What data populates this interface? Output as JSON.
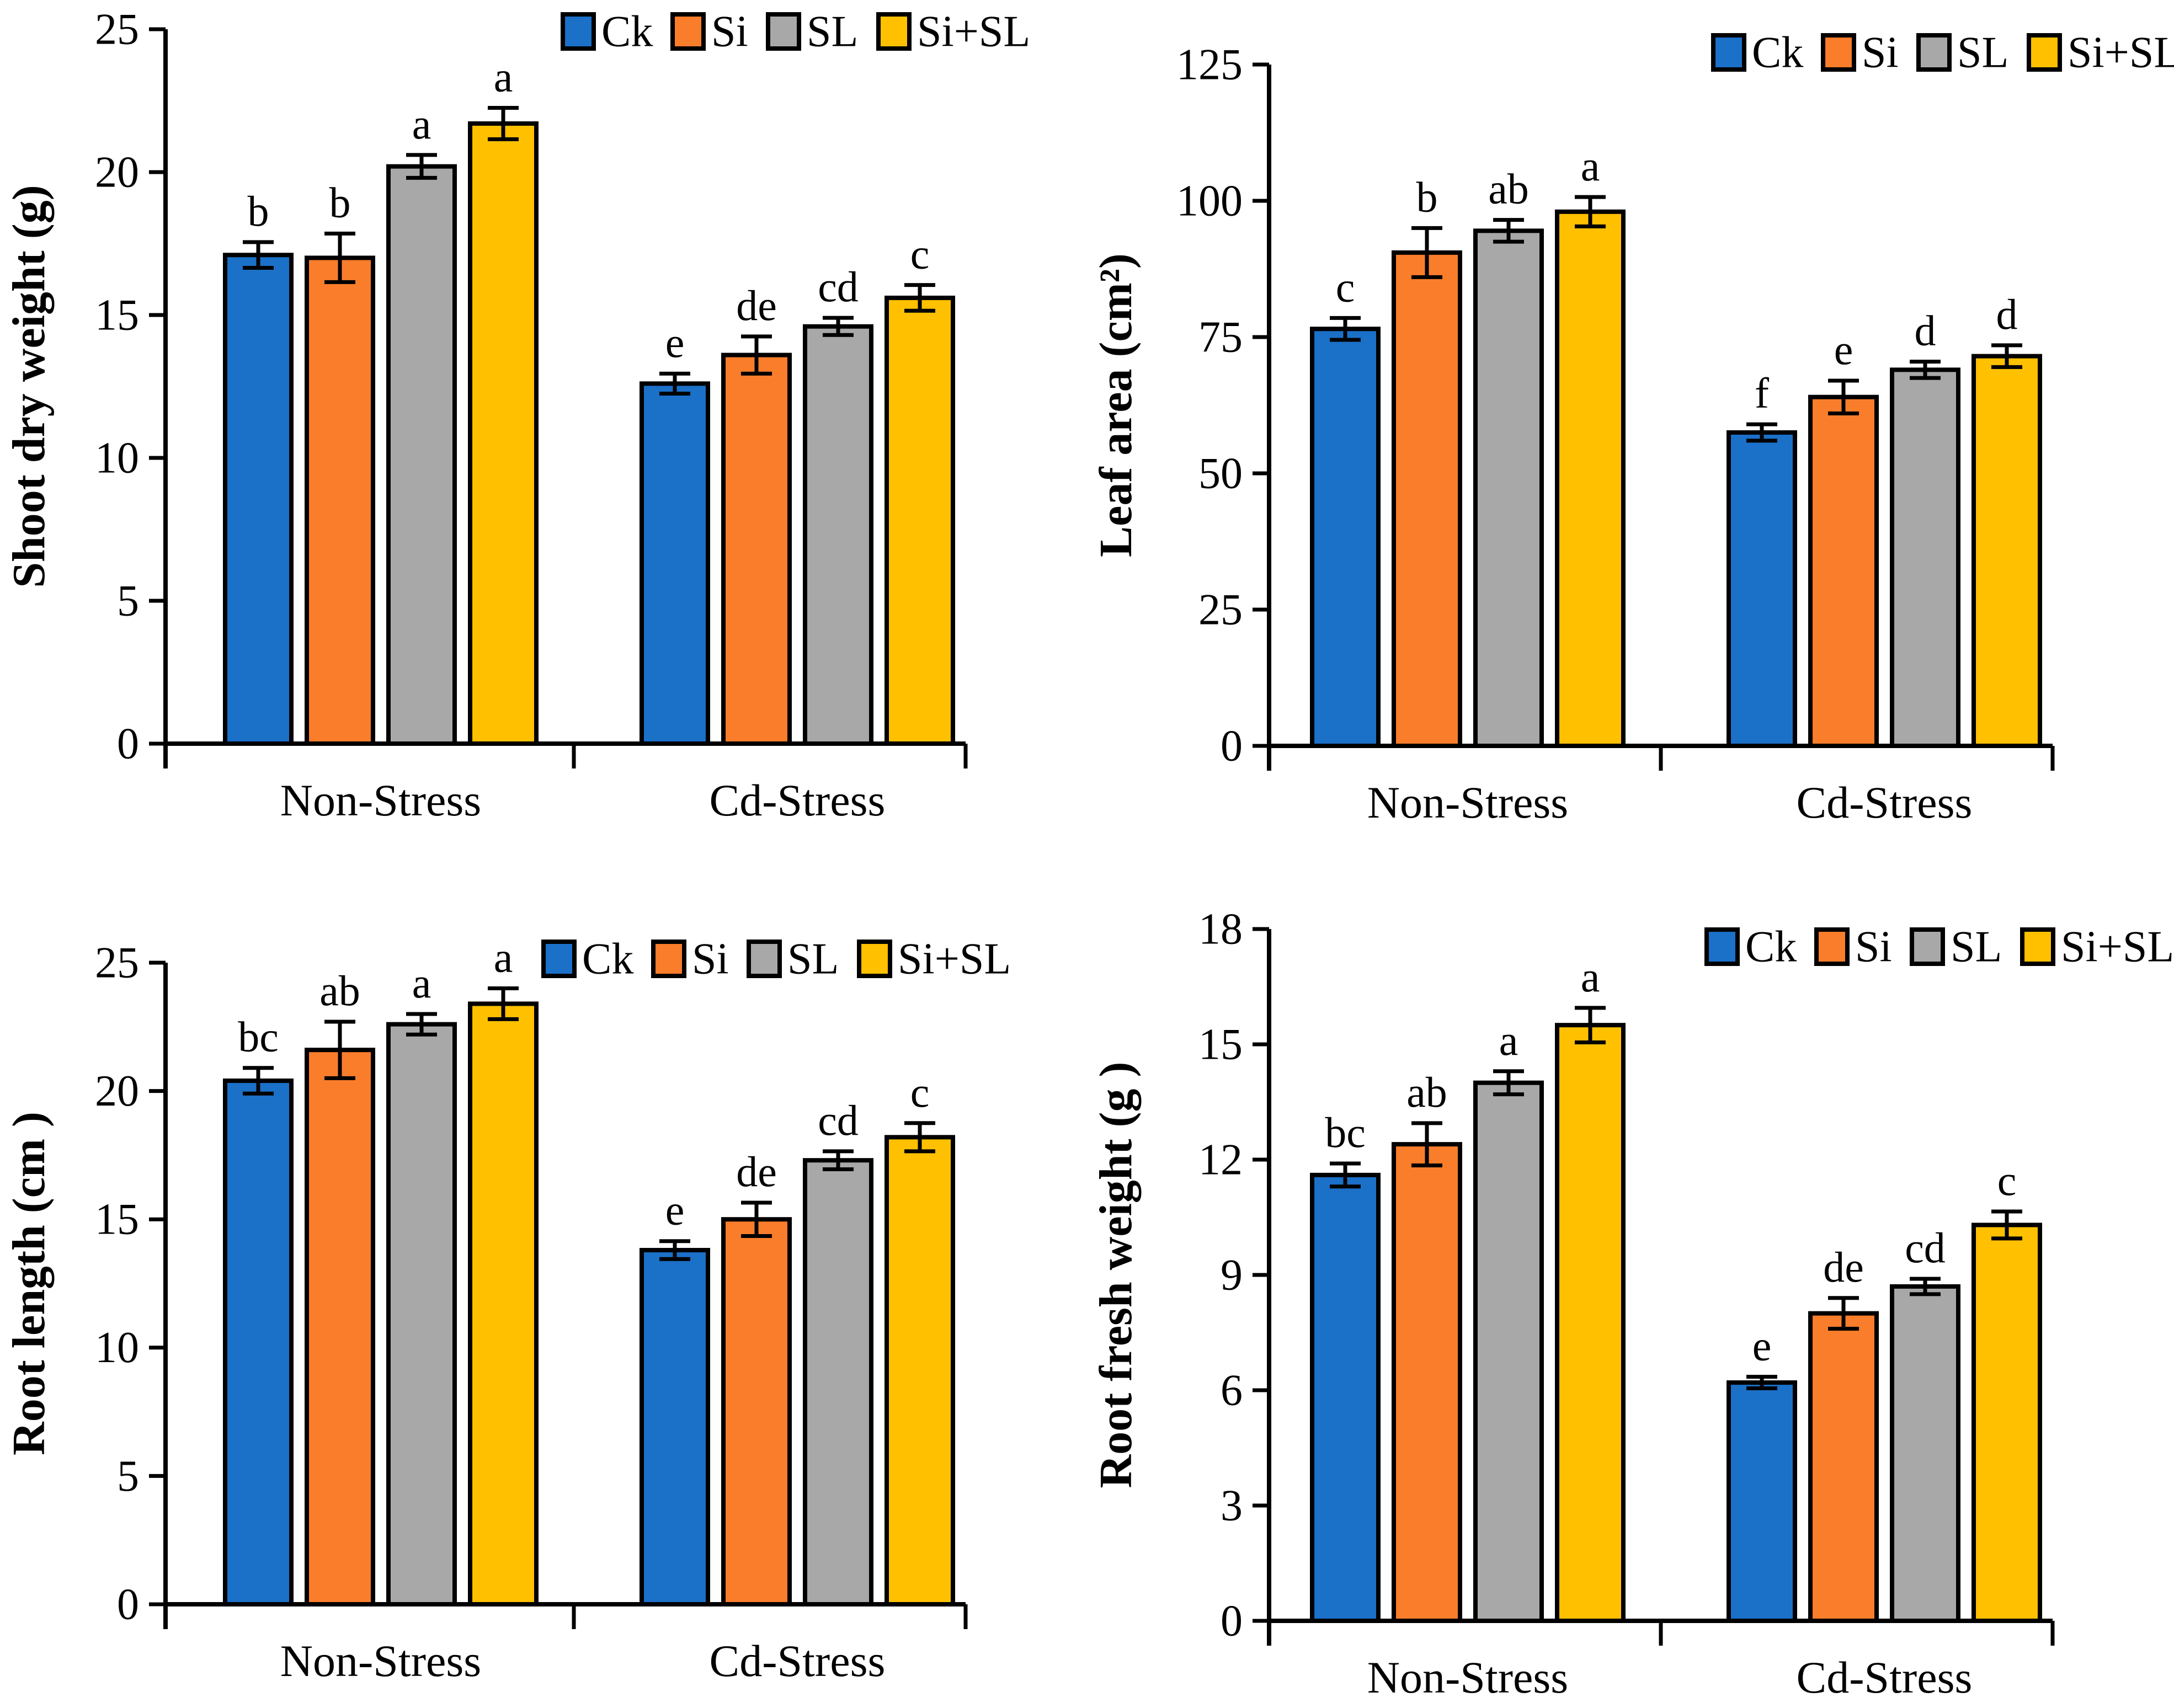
{
  "figure": {
    "background": "#ffffff",
    "layout": "2x2 grid of grouped bar charts with error bars and significance letters"
  },
  "colors": {
    "Ck": "#1B70C8",
    "Si": "#F97D2B",
    "SL": "#A8A8A8",
    "Si+SL": "#FFC000",
    "bar_border": "#000000",
    "axis": "#000000",
    "text": "#000000"
  },
  "legend": {
    "labels": [
      "Ck",
      "Si",
      "SL",
      "Si+SL"
    ],
    "position": "top-right"
  },
  "chart_data": [
    {
      "id": "shoot-dry-weight",
      "type": "bar",
      "title": "",
      "ylabel": "Shoot dry weight (g)",
      "xlabel": "",
      "ylim": [
        0,
        25
      ],
      "ytick_step": 5,
      "yticks": [
        0,
        5,
        10,
        15,
        20,
        25
      ],
      "categories": [
        "Non-Stress",
        "Cd-Stress"
      ],
      "grid": false,
      "legend_position": "top-right",
      "series": [
        {
          "name": "Ck",
          "values": [
            17.1,
            12.6
          ],
          "errors": [
            0.45,
            0.35
          ],
          "sig_letters": [
            "b",
            "e"
          ]
        },
        {
          "name": "Si",
          "values": [
            17.0,
            13.6
          ],
          "errors": [
            0.85,
            0.65
          ],
          "sig_letters": [
            "b",
            "de"
          ]
        },
        {
          "name": "SL",
          "values": [
            20.2,
            14.6
          ],
          "errors": [
            0.4,
            0.3
          ],
          "sig_letters": [
            "a",
            "cd"
          ]
        },
        {
          "name": "Si+SL",
          "values": [
            21.7,
            15.6
          ],
          "errors": [
            0.55,
            0.45
          ],
          "sig_letters": [
            "a",
            "c"
          ]
        }
      ]
    },
    {
      "id": "leaf-area",
      "type": "bar",
      "title": "",
      "ylabel": "Leaf area (cm²)",
      "xlabel": "",
      "ylim": [
        0,
        125
      ],
      "ytick_step": 25,
      "yticks": [
        0,
        25,
        50,
        75,
        100,
        125
      ],
      "categories": [
        "Non-Stress",
        "Cd-Stress"
      ],
      "grid": false,
      "legend_position": "top-right",
      "series": [
        {
          "name": "Ck",
          "values": [
            76.5,
            57.5
          ],
          "errors": [
            2.0,
            1.5
          ],
          "sig_letters": [
            "c",
            "f"
          ]
        },
        {
          "name": "Si",
          "values": [
            90.5,
            64.0
          ],
          "errors": [
            4.5,
            3.0
          ],
          "sig_letters": [
            "b",
            "e"
          ]
        },
        {
          "name": "SL",
          "values": [
            94.5,
            69.0
          ],
          "errors": [
            2.0,
            1.5
          ],
          "sig_letters": [
            "ab",
            "d"
          ]
        },
        {
          "name": "Si+SL",
          "values": [
            98.0,
            71.5
          ],
          "errors": [
            2.7,
            2.0
          ],
          "sig_letters": [
            "a",
            "d"
          ]
        }
      ]
    },
    {
      "id": "root-length",
      "type": "bar",
      "title": "",
      "ylabel": "Root length (cm )",
      "xlabel": "",
      "ylim": [
        0,
        25
      ],
      "ytick_step": 5,
      "yticks": [
        0,
        5,
        10,
        15,
        20,
        25
      ],
      "categories": [
        "Non-Stress",
        "Cd-Stress"
      ],
      "grid": false,
      "legend_position": "top-right",
      "series": [
        {
          "name": "Ck",
          "values": [
            20.4,
            13.8
          ],
          "errors": [
            0.5,
            0.35
          ],
          "sig_letters": [
            "bc",
            "e"
          ]
        },
        {
          "name": "Si",
          "values": [
            21.6,
            15.0
          ],
          "errors": [
            1.1,
            0.65
          ],
          "sig_letters": [
            "ab",
            "de"
          ]
        },
        {
          "name": "SL",
          "values": [
            22.6,
            17.3
          ],
          "errors": [
            0.4,
            0.35
          ],
          "sig_letters": [
            "a",
            "cd"
          ]
        },
        {
          "name": "Si+SL",
          "values": [
            23.4,
            18.2
          ],
          "errors": [
            0.6,
            0.55
          ],
          "sig_letters": [
            "a",
            "c"
          ]
        }
      ]
    },
    {
      "id": "root-fresh-weight",
      "type": "bar",
      "title": "",
      "ylabel": "Root fresh weight (g )",
      "xlabel": "",
      "ylim": [
        0,
        18
      ],
      "ytick_step": 3,
      "yticks": [
        0,
        3,
        6,
        9,
        12,
        15,
        18
      ],
      "categories": [
        "Non-Stress",
        "Cd-Stress"
      ],
      "grid": false,
      "legend_position": "top-right",
      "series": [
        {
          "name": "Ck",
          "values": [
            11.6,
            6.2
          ],
          "errors": [
            0.3,
            0.15
          ],
          "sig_letters": [
            "bc",
            "e"
          ]
        },
        {
          "name": "Si",
          "values": [
            12.4,
            8.0
          ],
          "errors": [
            0.55,
            0.4
          ],
          "sig_letters": [
            "ab",
            "de"
          ]
        },
        {
          "name": "SL",
          "values": [
            14.0,
            8.7
          ],
          "errors": [
            0.3,
            0.2
          ],
          "sig_letters": [
            "a",
            "cd"
          ]
        },
        {
          "name": "Si+SL",
          "values": [
            15.5,
            10.3
          ],
          "errors": [
            0.45,
            0.35
          ],
          "sig_letters": [
            "a",
            "c"
          ]
        }
      ]
    }
  ]
}
